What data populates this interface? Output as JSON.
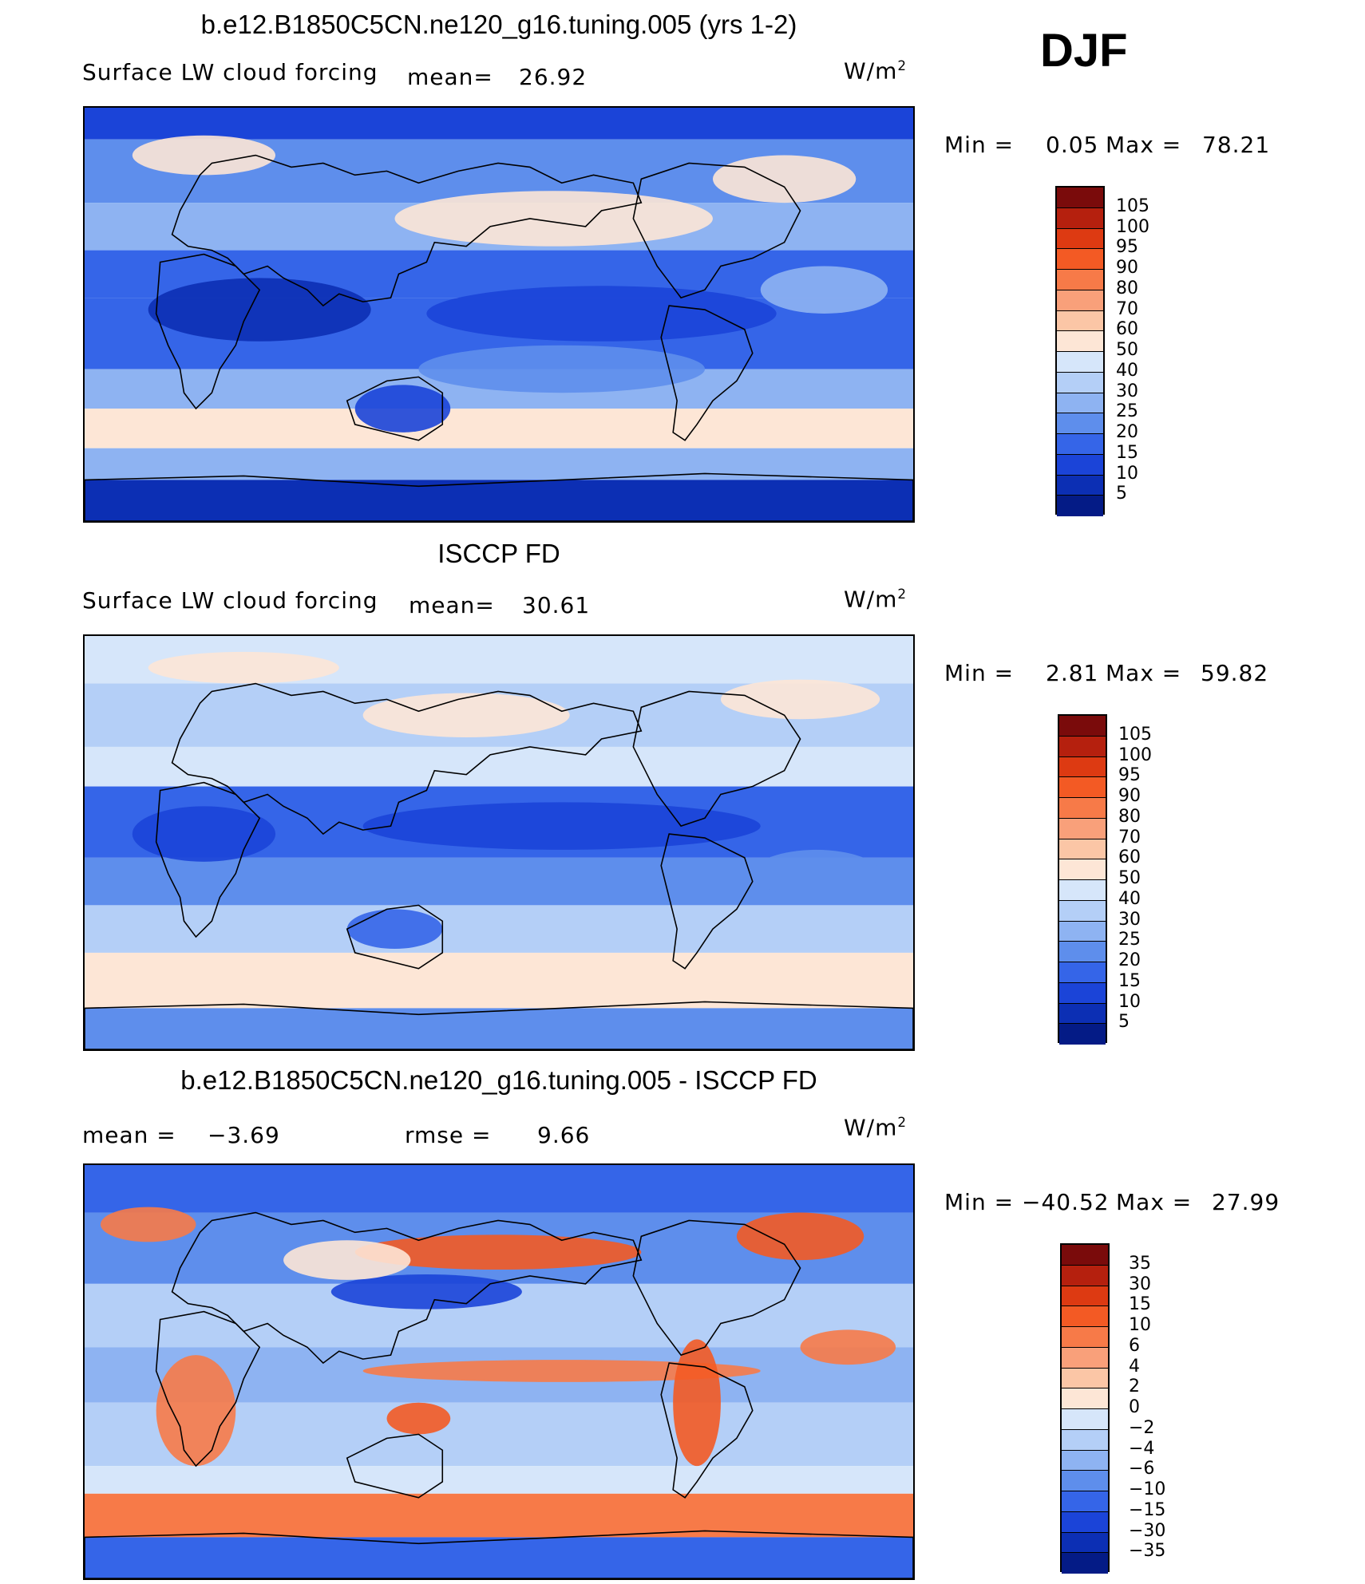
{
  "season": "DJF",
  "units": "W/m",
  "units_sup": "2",
  "panels": [
    {
      "title": "b.e12.B1850C5CN.ne120_g16.tuning.005 (yrs 1-2)",
      "left_label": "Surface LW cloud forcing",
      "mean_label": "mean=",
      "mean_value": "26.92",
      "min_label": "Min =",
      "min_value": "0.05",
      "max_label": "Max =",
      "max_value": "78.21",
      "levels": [
        "105",
        "100",
        "95",
        "90",
        "80",
        "70",
        "60",
        "50",
        "40",
        "30",
        "25",
        "20",
        "15",
        "10",
        "5"
      ],
      "colors": [
        "#7a0b0b",
        "#b5200e",
        "#dd3a12",
        "#f35a24",
        "#f77a48",
        "#f9a07a",
        "#fbc6a6",
        "#fde6d6",
        "#d6e6fa",
        "#b4cff7",
        "#8eb3f2",
        "#5e8eec",
        "#3565e8",
        "#1b44d8",
        "#0c2fb4",
        "#041b86"
      ]
    },
    {
      "title": "ISCCP FD",
      "left_label": "Surface LW cloud forcing",
      "mean_label": "mean=",
      "mean_value": "30.61",
      "min_label": "Min =",
      "min_value": "2.81",
      "max_label": "Max =",
      "max_value": "59.82",
      "levels": [
        "105",
        "100",
        "95",
        "90",
        "80",
        "70",
        "60",
        "50",
        "40",
        "30",
        "25",
        "20",
        "15",
        "10",
        "5"
      ],
      "colors": [
        "#7a0b0b",
        "#b5200e",
        "#dd3a12",
        "#f35a24",
        "#f77a48",
        "#f9a07a",
        "#fbc6a6",
        "#fde6d6",
        "#d6e6fa",
        "#b4cff7",
        "#8eb3f2",
        "#5e8eec",
        "#3565e8",
        "#1b44d8",
        "#0c2fb4",
        "#041b86"
      ]
    },
    {
      "title": "b.e12.B1850C5CN.ne120_g16.tuning.005 - ISCCP FD",
      "left_label": "mean =",
      "mean_value": "−3.69",
      "rmse_label": "rmse =",
      "rmse_value": "9.66",
      "min_label": "Min =",
      "min_value": "−40.52",
      "max_label": "Max =",
      "max_value": "27.99",
      "levels": [
        "35",
        "30",
        "15",
        "10",
        "6",
        "4",
        "2",
        "0",
        "−2",
        "−4",
        "−6",
        "−10",
        "−15",
        "−30",
        "−35"
      ],
      "colors": [
        "#7a0b0b",
        "#b5200e",
        "#dd3a12",
        "#f35a24",
        "#f77a48",
        "#f9a07a",
        "#fbc6a6",
        "#fde6d6",
        "#d6e6fa",
        "#b4cff7",
        "#8eb3f2",
        "#5e8eec",
        "#3565e8",
        "#1b44d8",
        "#0c2fb4",
        "#041b86"
      ]
    }
  ],
  "chart_data": [
    {
      "type": "heatmap",
      "title": "b.e12.B1850C5CN.ne120_g16.tuning.005 (yrs 1-2)",
      "subtitle": "Surface LW cloud forcing",
      "units": "W/m2",
      "mean": 26.92,
      "min": 0.05,
      "max": 78.21,
      "contour_levels": [
        5,
        10,
        15,
        20,
        25,
        30,
        40,
        50,
        60,
        70,
        80,
        90,
        95,
        100,
        105
      ]
    },
    {
      "type": "heatmap",
      "title": "ISCCP FD",
      "subtitle": "Surface LW cloud forcing",
      "units": "W/m2",
      "mean": 30.61,
      "min": 2.81,
      "max": 59.82,
      "contour_levels": [
        5,
        10,
        15,
        20,
        25,
        30,
        40,
        50,
        60,
        70,
        80,
        90,
        95,
        100,
        105
      ]
    },
    {
      "type": "heatmap",
      "title": "b.e12.B1850C5CN.ne120_g16.tuning.005 - ISCCP FD",
      "units": "W/m2",
      "mean": -3.69,
      "rmse": 9.66,
      "min": -40.52,
      "max": 27.99,
      "contour_levels": [
        -35,
        -30,
        -15,
        -10,
        -6,
        -4,
        -2,
        0,
        2,
        4,
        6,
        10,
        15,
        30,
        35
      ]
    }
  ]
}
